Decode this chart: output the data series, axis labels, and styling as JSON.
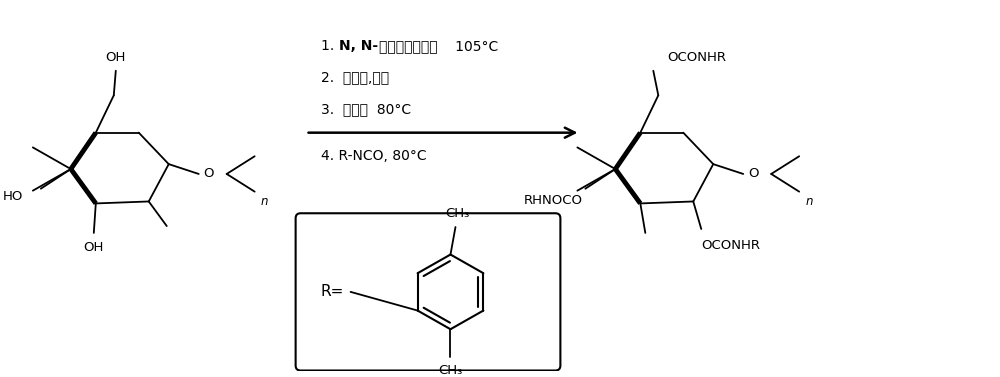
{
  "bg_color": "#ffffff",
  "line_color": "#000000",
  "reaction_conditions_bold": "1. N, N-",
  "reaction_conditions": [
    "1. N, N-二甲基乙酰胺，    105°C",
    "2. 氯化锂,常温",
    "3. 吠啶，  80°C",
    "4. R-NCO, 80°C"
  ],
  "figsize": [
    10.0,
    3.77
  ],
  "dpi": 100
}
